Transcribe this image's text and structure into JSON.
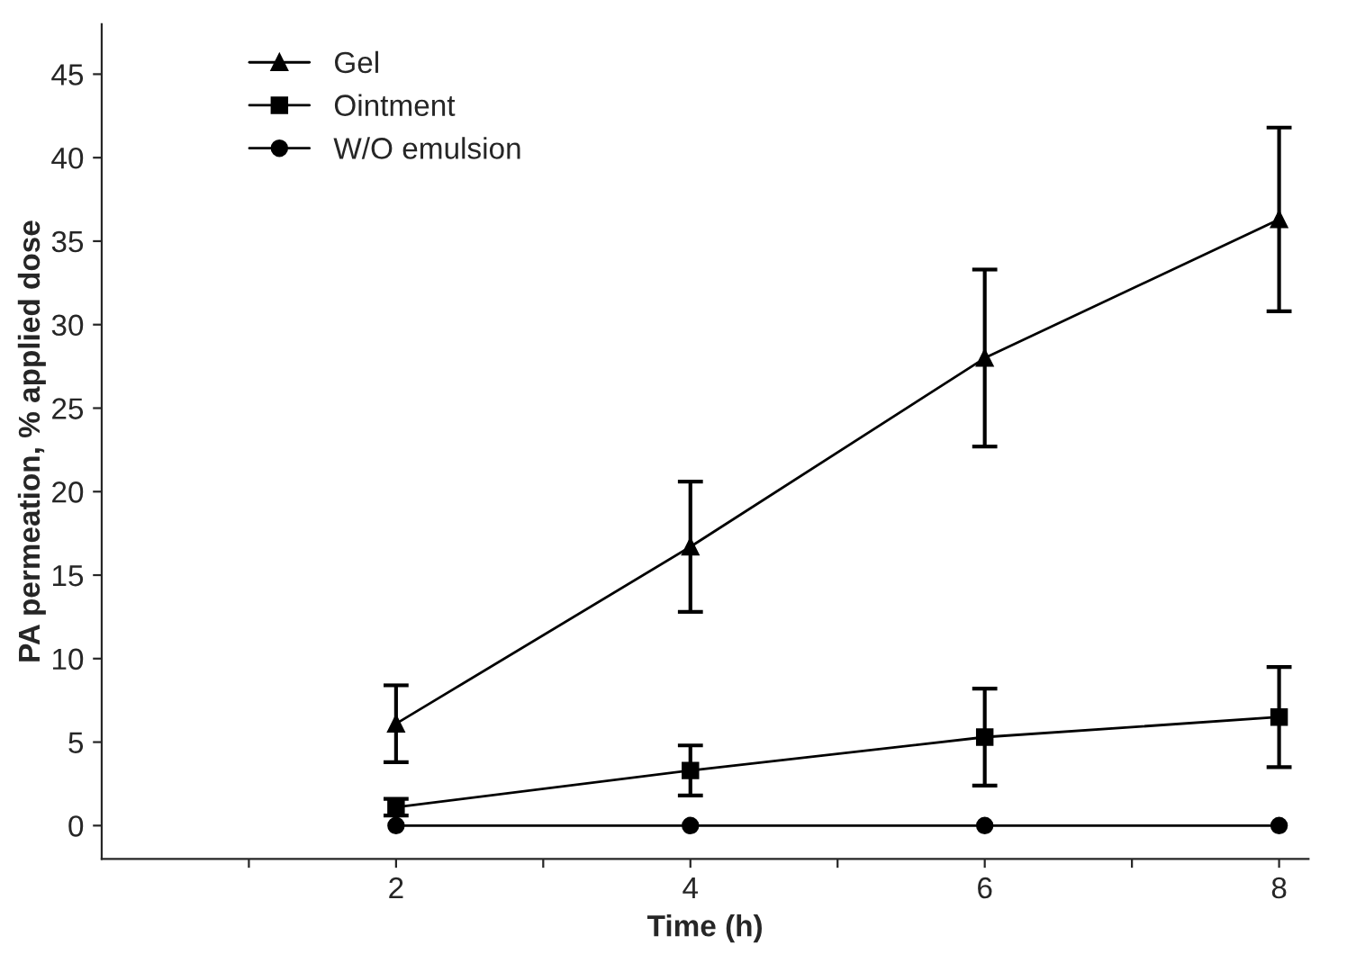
{
  "chart_data": {
    "type": "line",
    "xlabel": "Time (h)",
    "ylabel": "PA permeation, % applied dose",
    "x": [
      2,
      4,
      6,
      8
    ],
    "series": [
      {
        "name": "Gel",
        "color": "#000000",
        "marker": "triangle",
        "values": [
          6.1,
          16.7,
          28.0,
          36.3
        ],
        "errors": [
          2.3,
          3.9,
          5.3,
          5.5
        ]
      },
      {
        "name": "Ointment",
        "color": "#000000",
        "marker": "square",
        "values": [
          1.1,
          3.3,
          5.3,
          6.5
        ],
        "errors": [
          0.5,
          1.5,
          2.9,
          3.0
        ]
      },
      {
        "name": "W/O emulsion",
        "color": "#000000",
        "marker": "circle",
        "values": [
          0,
          0,
          0,
          0
        ]
      }
    ],
    "xlim": [
      0,
      8.2
    ],
    "ylim": [
      -2,
      48
    ],
    "xticks": [
      {
        "value": 1,
        "label": null
      },
      2,
      {
        "value": 3,
        "label": null
      },
      4,
      {
        "value": 5,
        "label": null
      },
      6,
      {
        "value": 7,
        "label": null
      },
      8
    ],
    "yticks": [
      0,
      5,
      10,
      15,
      20,
      25,
      30,
      35,
      40,
      45
    ],
    "grid": false,
    "legend": "top left",
    "line_style": "solid"
  }
}
